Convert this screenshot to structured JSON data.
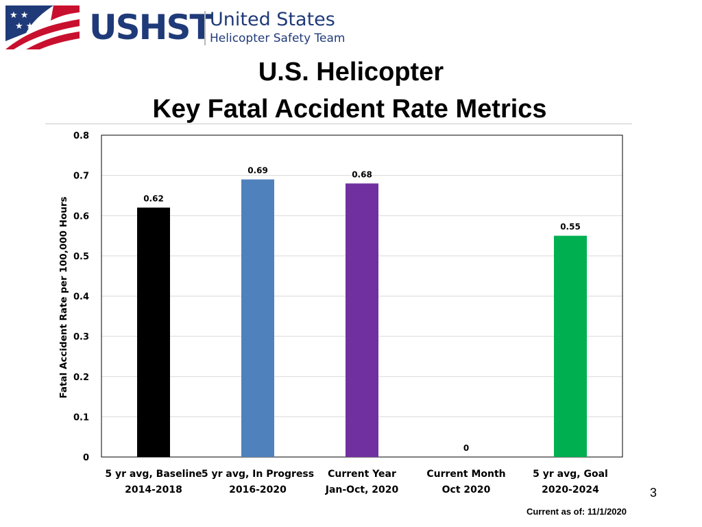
{
  "logo": {
    "abbreviation": "USHST",
    "name_line1": "United States",
    "name_line2": "Helicopter Safety Team"
  },
  "slide": {
    "title_line1": "U.S. Helicopter",
    "title_line2": "Key Fatal Accident Rate Metrics",
    "page_number": "3",
    "footer": "Current as of:  11/1/2020"
  },
  "chart_data": {
    "type": "bar",
    "title": "",
    "xlabel": "",
    "ylabel": "Fatal Accident Rate per 100,000 Hours",
    "ylim": [
      0,
      0.8
    ],
    "yticks": [
      0,
      0.1,
      0.2,
      0.3,
      0.4,
      0.5,
      0.6,
      0.7,
      0.8
    ],
    "grid": true,
    "legend": "none",
    "categories": [
      [
        "5 yr avg, Baseline",
        "2014-2018"
      ],
      [
        "5 yr avg, In Progress",
        "2016-2020"
      ],
      [
        "Current Year",
        "Jan-Oct, 2020"
      ],
      [
        "Current Month",
        "Oct 2020"
      ],
      [
        "5 yr avg, Goal",
        "2020-2024"
      ]
    ],
    "values": [
      0.62,
      0.69,
      0.68,
      0,
      0.55
    ],
    "data_labels": [
      "0.62",
      "0.69",
      "0.68",
      "0",
      "0.55"
    ],
    "colors": [
      "#000000",
      "#4f81bd",
      "#7030a0",
      "#ffffff",
      "#00b050"
    ]
  }
}
